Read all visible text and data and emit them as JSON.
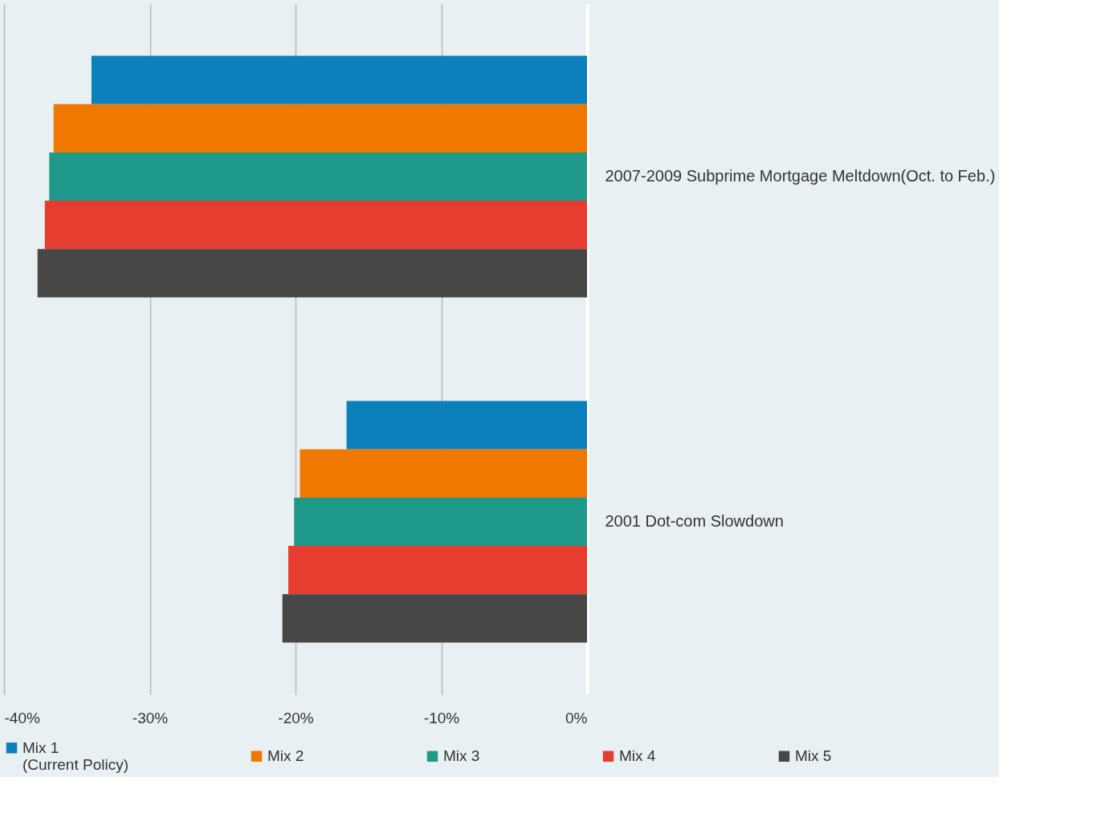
{
  "chart_data": {
    "type": "bar",
    "orientation": "horizontal",
    "categories": [
      "2007-2009 Subprime Mortgage Meltdown(Oct. to Feb.)",
      "2001 Dot-com Slowdown"
    ],
    "series": [
      {
        "name": "Mix 1\n(Current Policy)",
        "color": "#0c7fbd",
        "values": [
          -34.0,
          -16.5
        ]
      },
      {
        "name": "Mix 2",
        "color": "#ee7800",
        "values": [
          -36.6,
          -19.7
        ]
      },
      {
        "name": "Mix 3",
        "color": "#1f9a8a",
        "values": [
          -36.9,
          -20.1
        ]
      },
      {
        "name": "Mix 4",
        "color": "#e53d30",
        "values": [
          -37.2,
          -20.5
        ]
      },
      {
        "name": "Mix 5",
        "color": "#474747",
        "values": [
          -37.7,
          -20.9
        ]
      }
    ],
    "xlim": [
      -40,
      0
    ],
    "xticks": [
      {
        "value": -40,
        "label": "-40%"
      },
      {
        "value": -30,
        "label": "-30%"
      },
      {
        "value": -20,
        "label": "-20%"
      },
      {
        "value": -10,
        "label": "-10%"
      },
      {
        "value": 0,
        "label": "0%"
      }
    ],
    "grid": "x",
    "legend": "bottom"
  }
}
